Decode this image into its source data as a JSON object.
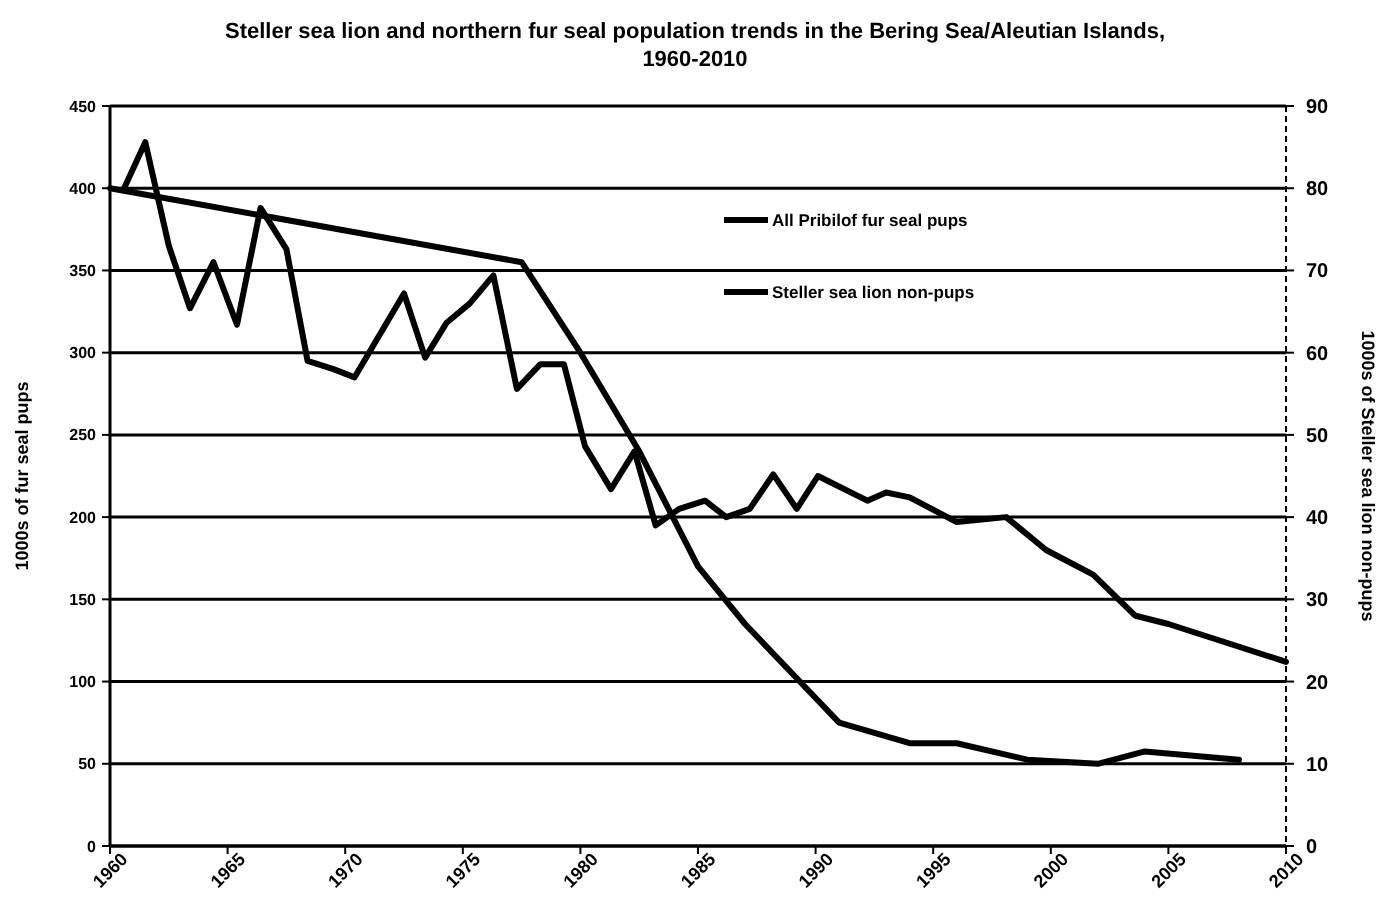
{
  "chart_data": {
    "type": "line",
    "title": "Steller sea lion and northern fur seal population trends in the Bering Sea/Aleutian Islands,",
    "subtitle": "1960-2010",
    "ylabel": "1000s of fur seal pups",
    "y2label": "1000s of Steller sea lion  non-pups",
    "xlim": [
      1960,
      2010
    ],
    "xticks": [
      1960,
      1965,
      1970,
      1975,
      1980,
      1985,
      1990,
      1995,
      2000,
      2005,
      2010
    ],
    "ylim": [
      0,
      450
    ],
    "yticks": [
      0,
      50,
      100,
      150,
      200,
      250,
      300,
      350,
      400,
      450
    ],
    "y2lim": [
      0,
      90
    ],
    "y2ticks": [
      0,
      10,
      20,
      30,
      40,
      50,
      60,
      70,
      80,
      90
    ],
    "grid": "y",
    "legend": "top",
    "line_style": "solid",
    "marker": "none",
    "series": [
      {
        "name": "All Pribilof fur seal pups",
        "color": "#000000",
        "x": [
          1960.6,
          1961.5,
          1962.5,
          1963.4,
          1964.4,
          1965.4,
          1966.4,
          1967.5,
          1968.4,
          1969.5,
          1970.4,
          1972.5,
          1973.4,
          1974.3,
          1975.3,
          1976.3,
          1977.3,
          1978.3,
          1979.3,
          1980.2,
          1981.3,
          1982.3,
          1983.2,
          1984.2,
          1985.3,
          1986.2,
          1987.2,
          1988.2,
          1989.2,
          1990.1,
          1992.2,
          1993,
          1994,
          1996,
          1998.1,
          1999.8,
          2001.8,
          2003.6,
          2005,
          2010
        ],
        "values": [
          400,
          428,
          365,
          327,
          355,
          317,
          388,
          363,
          295,
          290,
          285,
          336,
          297,
          318,
          330,
          347,
          278,
          293,
          293,
          243,
          217,
          240,
          195,
          205,
          210,
          200,
          205,
          226,
          205,
          225,
          210,
          215,
          212,
          197,
          200,
          180,
          165,
          140,
          135,
          112
        ]
      },
      {
        "name": "Steller sea lion non-pups",
        "color": "#000000",
        "axis": "y2",
        "x": [
          1960,
          1977.5,
          1980,
          1982.5,
          1985,
          1987,
          1990,
          1991,
          1994,
          1996,
          1999,
          2002,
          2004,
          2008
        ],
        "values": [
          80,
          71,
          60,
          48,
          34,
          27,
          18,
          15,
          12.5,
          12.5,
          10.5,
          10,
          11.5,
          10.5
        ]
      }
    ]
  }
}
